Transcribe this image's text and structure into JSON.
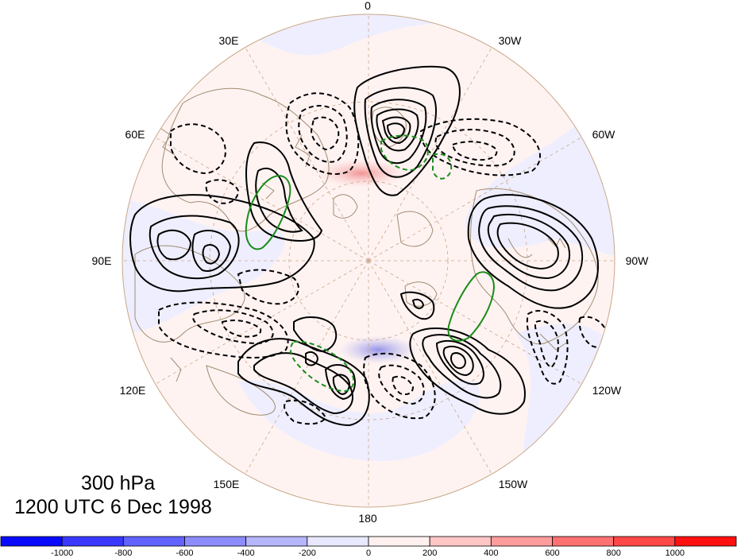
{
  "map": {
    "projection": "north-polar-stereographic",
    "longitude_labels": {
      "top": "0",
      "top_left": "30E",
      "top_right": "30W",
      "upper_left": "60E",
      "upper_right": "60W",
      "left": "90E",
      "right": "90W",
      "lower_left": "120E",
      "lower_right": "120W",
      "bottom_left": "150E",
      "bottom_right": "150W",
      "bottom": "180"
    },
    "contours": {
      "positive": "solid black",
      "negative": "dashed black",
      "highlight": "green"
    },
    "colors": {
      "land_outline": "#a08c70",
      "grid": "#c8a888",
      "positive_shade": "#f0b8b8",
      "negative_shade": "#c0c0f0"
    }
  },
  "title": {
    "level": "300 hPa",
    "time": "1200 UTC 6 Dec 1998"
  },
  "colorbar": {
    "bins": [
      -1200,
      -1000,
      -800,
      -600,
      -400,
      -200,
      0,
      200,
      400,
      600,
      800,
      1000,
      1200
    ],
    "tick_labels": [
      "-1000",
      "-800",
      "-600",
      "-400",
      "-200",
      "0",
      "200",
      "400",
      "600",
      "800",
      "1000"
    ],
    "colors": [
      "#0a0aff",
      "#3838ff",
      "#6262ff",
      "#8c8cff",
      "#b6b6ff",
      "#e8e8ff",
      "#fff0f0",
      "#ffc6c6",
      "#ff9c9c",
      "#ff7272",
      "#ff4848",
      "#ff1010"
    ]
  }
}
